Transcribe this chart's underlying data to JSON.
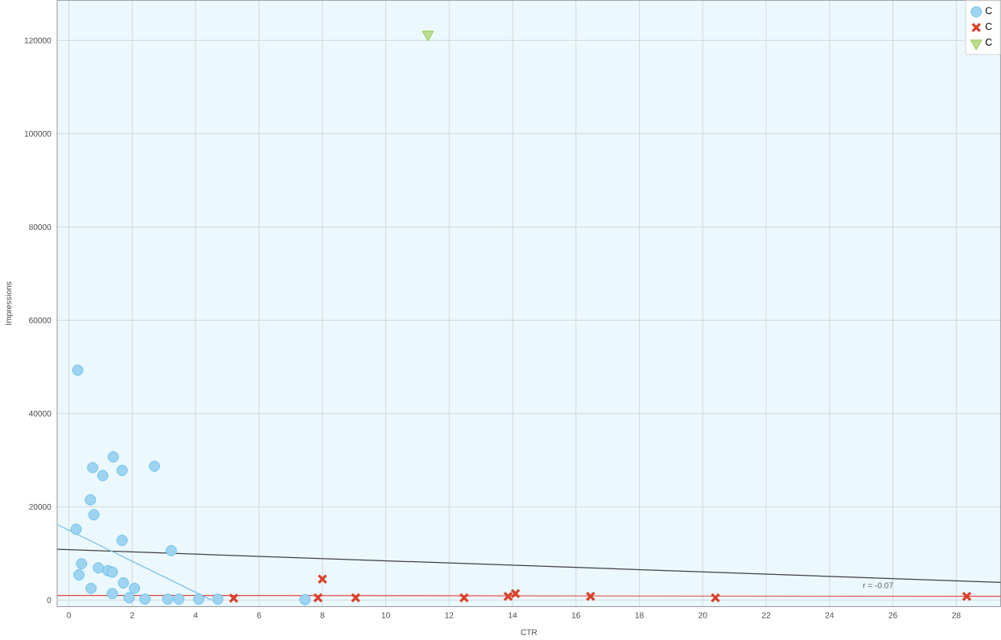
{
  "chart_data": {
    "type": "scatter",
    "xlabel": "CTR",
    "ylabel": "Impressions",
    "xlim": [
      -0.37,
      29.4
    ],
    "ylim": [
      -1400,
      128600
    ],
    "xticks": [
      0,
      2,
      4,
      6,
      8,
      10,
      12,
      14,
      16,
      18,
      20,
      22,
      24,
      26,
      28
    ],
    "yticks": [
      0,
      20000,
      40000,
      60000,
      80000,
      100000,
      120000
    ],
    "grid": true,
    "legend": "top right",
    "series": [
      {
        "name": "C",
        "color": "#5bb8e8",
        "marker": "circle",
        "x": [
          0.28,
          0.75,
          1.4,
          1.68,
          1.07,
          2.7,
          0.68,
          0.79,
          0.23,
          1.68,
          3.23,
          0.4,
          0.32,
          0.93,
          1.23,
          1.37,
          0.7,
          1.72,
          2.07,
          1.37,
          1.9,
          2.4,
          3.12,
          3.47,
          4.1,
          4.7,
          7.45
        ],
        "values": [
          49300,
          28400,
          30700,
          27800,
          26700,
          28700,
          21500,
          18300,
          15200,
          12800,
          10600,
          7800,
          5400,
          6900,
          6300,
          6000,
          2500,
          3700,
          2500,
          1400,
          500,
          200,
          200,
          200,
          200,
          200,
          100
        ]
      },
      {
        "name": "C",
        "color": "#d9412b",
        "marker": "cross",
        "x": [
          5.2,
          8.0,
          7.86,
          9.05,
          12.47,
          13.86,
          14.09,
          16.46,
          20.4,
          28.33
        ],
        "values": [
          400,
          4500,
          500,
          500,
          500,
          800,
          1400,
          800,
          500,
          800
        ]
      },
      {
        "name": "C",
        "color": "#8cc63f",
        "marker": "triangle",
        "x": [
          11.33
        ],
        "values": [
          121300
        ]
      },
      {
        "type": "line",
        "color": "#404040",
        "x": [
          -0.37,
          29.4
        ],
        "values": [
          10900,
          3800
        ]
      },
      {
        "type": "line",
        "color": "#7ec0e8",
        "x": [
          -0.37,
          4.5
        ],
        "values": [
          16200,
          0
        ]
      },
      {
        "type": "line",
        "color": "#e04a3a",
        "x": [
          -0.37,
          29.4
        ],
        "values": [
          1000,
          800
        ]
      }
    ],
    "annotations": [
      "r = -0.07"
    ]
  }
}
